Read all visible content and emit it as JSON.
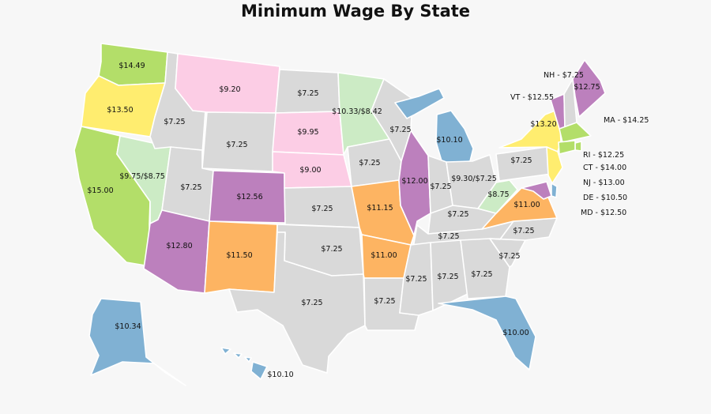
{
  "title": "Minimum Wage By State",
  "colors": {
    "federal_gray": "#d9d9d9",
    "green": "#b3de69",
    "light_green": "#ccebc5",
    "yellow": "#ffed6f",
    "pink": "#fccde5",
    "purple": "#bc80bd",
    "orange": "#fdb462",
    "blue": "#80b1d3",
    "border": "#ffffff",
    "background": "#f7f7f7"
  },
  "states": {
    "WA": {
      "wage": "$14.49",
      "color": "green"
    },
    "OR": {
      "wage": "$13.50",
      "color": "yellow"
    },
    "CA": {
      "wage": "$15.00",
      "color": "green"
    },
    "NV": {
      "wage": "$9.75/$8.75",
      "color": "light_green"
    },
    "ID": {
      "wage": "$7.25",
      "color": "federal_gray"
    },
    "MT": {
      "wage": "$9.20",
      "color": "pink"
    },
    "WY": {
      "wage": "$7.25",
      "color": "federal_gray"
    },
    "UT": {
      "wage": "$7.25",
      "color": "federal_gray"
    },
    "AZ": {
      "wage": "$12.80",
      "color": "purple"
    },
    "CO": {
      "wage": "$12.56",
      "color": "purple"
    },
    "NM": {
      "wage": "$11.50",
      "color": "orange"
    },
    "ND": {
      "wage": "$7.25",
      "color": "federal_gray"
    },
    "SD": {
      "wage": "$9.95",
      "color": "pink"
    },
    "NE": {
      "wage": "$9.00",
      "color": "pink"
    },
    "KS": {
      "wage": "$7.25",
      "color": "federal_gray"
    },
    "OK": {
      "wage": "$7.25",
      "color": "federal_gray"
    },
    "TX": {
      "wage": "$7.25",
      "color": "federal_gray"
    },
    "MN": {
      "wage": "$10.33/$8.42",
      "color": "light_green"
    },
    "IA": {
      "wage": "$7.25",
      "color": "federal_gray"
    },
    "MO": {
      "wage": "$11.15",
      "color": "orange"
    },
    "AR": {
      "wage": "$11.00",
      "color": "orange"
    },
    "LA": {
      "wage": "$7.25",
      "color": "federal_gray"
    },
    "WI": {
      "wage": "$7.25",
      "color": "federal_gray"
    },
    "IL": {
      "wage": "$12.00",
      "color": "purple"
    },
    "MI": {
      "wage": "$10.10",
      "color": "blue"
    },
    "IN": {
      "wage": "$7.25",
      "color": "federal_gray"
    },
    "OH": {
      "wage": "$9.30/$7.25",
      "color": "federal_gray"
    },
    "KY": {
      "wage": "$7.25",
      "color": "federal_gray"
    },
    "TN": {
      "wage": "$7.25",
      "color": "federal_gray"
    },
    "MS": {
      "wage": "$7.25",
      "color": "federal_gray"
    },
    "AL": {
      "wage": "$7.25",
      "color": "federal_gray"
    },
    "GA": {
      "wage": "$7.25",
      "color": "federal_gray"
    },
    "FL": {
      "wage": "$10.00",
      "color": "blue"
    },
    "SC": {
      "wage": "$7.25",
      "color": "federal_gray"
    },
    "NC": {
      "wage": "$7.25",
      "color": "federal_gray"
    },
    "VA": {
      "wage": "$11.00",
      "color": "orange"
    },
    "WV": {
      "wage": "$8.75",
      "color": "light_green"
    },
    "PA": {
      "wage": "$7.25",
      "color": "federal_gray"
    },
    "NY": {
      "wage": "$13.20",
      "color": "yellow"
    },
    "VT": {
      "wage": "$12.55",
      "color": "purple"
    },
    "NH": {
      "wage": "$7.25",
      "color": "federal_gray"
    },
    "ME": {
      "wage": "$12.75",
      "color": "purple"
    },
    "MA": {
      "wage": "$14.25",
      "color": "green"
    },
    "RI": {
      "wage": "$12.25",
      "color": "green"
    },
    "CT": {
      "wage": "$14.00",
      "color": "green"
    },
    "NJ": {
      "wage": "$13.00",
      "color": "yellow"
    },
    "DE": {
      "wage": "$10.50",
      "color": "blue"
    },
    "MD": {
      "wage": "$12.50",
      "color": "purple"
    },
    "AK": {
      "wage": "$10.34",
      "color": "blue"
    },
    "HI": {
      "wage": "$10.10",
      "color": "blue"
    }
  },
  "callouts": [
    {
      "text": "NH - $7.25"
    },
    {
      "text": "VT - $12.55"
    },
    {
      "text": "MA - $14.25"
    },
    {
      "text": "RI - $12.25"
    },
    {
      "text": "CT - $14.00"
    },
    {
      "text": "NJ - $13.00"
    },
    {
      "text": "DE - $10.50"
    },
    {
      "text": "MD - $12.50"
    }
  ]
}
